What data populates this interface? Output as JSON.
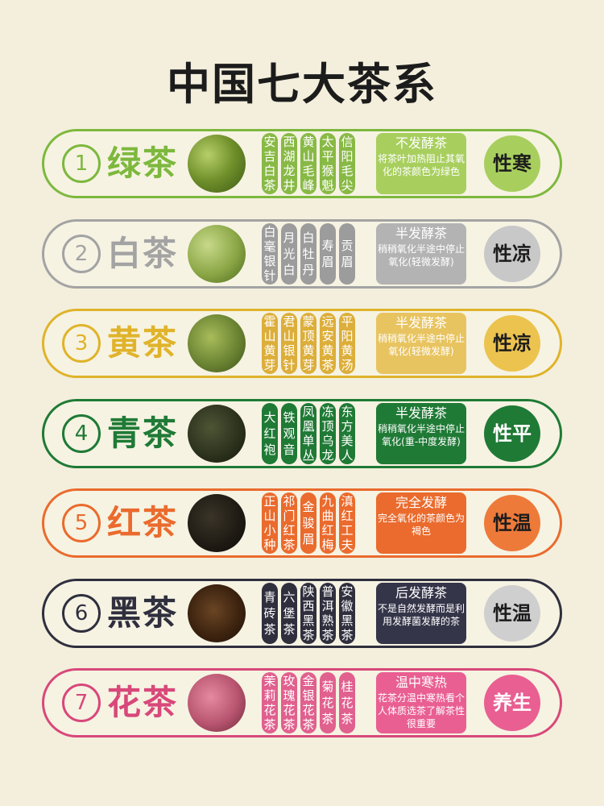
{
  "title": "中国七大茶系",
  "teas": [
    {
      "num": "①",
      "name": "绿茶",
      "varieties": [
        "安吉白茶",
        "西湖龙井",
        "黄山毛峰",
        "太平猴魁",
        "信阳毛尖"
      ],
      "process_title": "不发酵茶",
      "process_desc": "将茶叶加热阻止其氧化的茶颜色为绿色",
      "nature": "性寒",
      "color": "#7db83d",
      "col_color": "#88b945",
      "box_color": "#a8cf5e",
      "nature_color": "#a8cf5e",
      "nature_text_color": "#1c1c1c",
      "leaf_icon": "green-tea-leaves"
    },
    {
      "num": "②",
      "name": "白茶",
      "varieties": [
        "白毫银针",
        "月光白",
        "白牡丹",
        "寿眉",
        "贡眉"
      ],
      "process_title": "半发酵茶",
      "process_desc": "稍稍氧化半途中停止氧化(轻微发酵)",
      "nature": "性凉",
      "color": "#a3a3a3",
      "col_color": "#9c9c9c",
      "box_color": "#b3b3b3",
      "nature_color": "#c8c8c8",
      "nature_text_color": "#1c1c1c",
      "leaf_icon": "white-tea-leaves"
    },
    {
      "num": "③",
      "name": "黄茶",
      "varieties": [
        "霍山黄芽",
        "君山银针",
        "蒙顶黄芽",
        "远安黄茶",
        "平阳黄汤"
      ],
      "process_title": "半发酵茶",
      "process_desc": "稍稍氧化半途中停止氧化(轻微发酵)",
      "nature": "性凉",
      "color": "#e0b32a",
      "col_color": "#dcae3a",
      "box_color": "#e8c460",
      "nature_color": "#ecc34f",
      "nature_text_color": "#1c1c1c",
      "leaf_icon": "yellow-tea-leaves"
    },
    {
      "num": "④",
      "name": "青茶",
      "varieties": [
        "大红袍",
        "铁观音",
        "凤凰单丛",
        "冻顶乌龙",
        "东方美人"
      ],
      "process_title": "半发酵茶",
      "process_desc": "稍稍氧化半途中停止氧化(重-中度发酵)",
      "nature": "性平",
      "color": "#1f7a35",
      "col_color": "#1f7a35",
      "box_color": "#1f7a35",
      "nature_color": "#1f7a35",
      "nature_text_color": "#ffffff",
      "leaf_icon": "oolong-tea-leaves"
    },
    {
      "num": "⑤",
      "name": "红茶",
      "varieties": [
        "正山小种",
        "祁门红茶",
        "金骏眉",
        "九曲红梅",
        "滇红工夫"
      ],
      "process_title": "完全发酵",
      "process_desc": "完全氧化的茶颜色为褐色",
      "nature": "性温",
      "color": "#ea6b2d",
      "col_color": "#ea6b2d",
      "box_color": "#ea6b2d",
      "nature_color": "#ee7a3a",
      "nature_text_color": "#1c1c1c",
      "leaf_icon": "black-tea-leaves"
    },
    {
      "num": "⑥",
      "name": "黑茶",
      "varieties": [
        "青砖茶",
        "六堡茶",
        "陕西黑茶",
        "普洱熟茶",
        "安徽黑茶"
      ],
      "process_title": "后发酵茶",
      "process_desc": "不是自然发酵而是利用发酵菌发酵的茶",
      "nature": "性温",
      "color": "#2f2f3e",
      "col_color": "#2f2f3e",
      "box_color": "#35354a",
      "nature_color": "#cfcfcf",
      "nature_text_color": "#1c1c1c",
      "leaf_icon": "dark-tea-brick"
    },
    {
      "num": "⑦",
      "name": "花茶",
      "varieties": [
        "茉莉花茶",
        "玫瑰花茶",
        "金银花茶",
        "菊花茶",
        "桂花茶"
      ],
      "process_title": "温中寒热",
      "process_desc": "花茶分温中寒热看个人体质选茶了解茶性很重要",
      "nature": "养生",
      "color": "#d8487a",
      "col_color": "#e0608e",
      "box_color": "#e95f92",
      "nature_color": "#e95f92",
      "nature_text_color": "#ffffff",
      "leaf_icon": "rose-buds"
    }
  ]
}
